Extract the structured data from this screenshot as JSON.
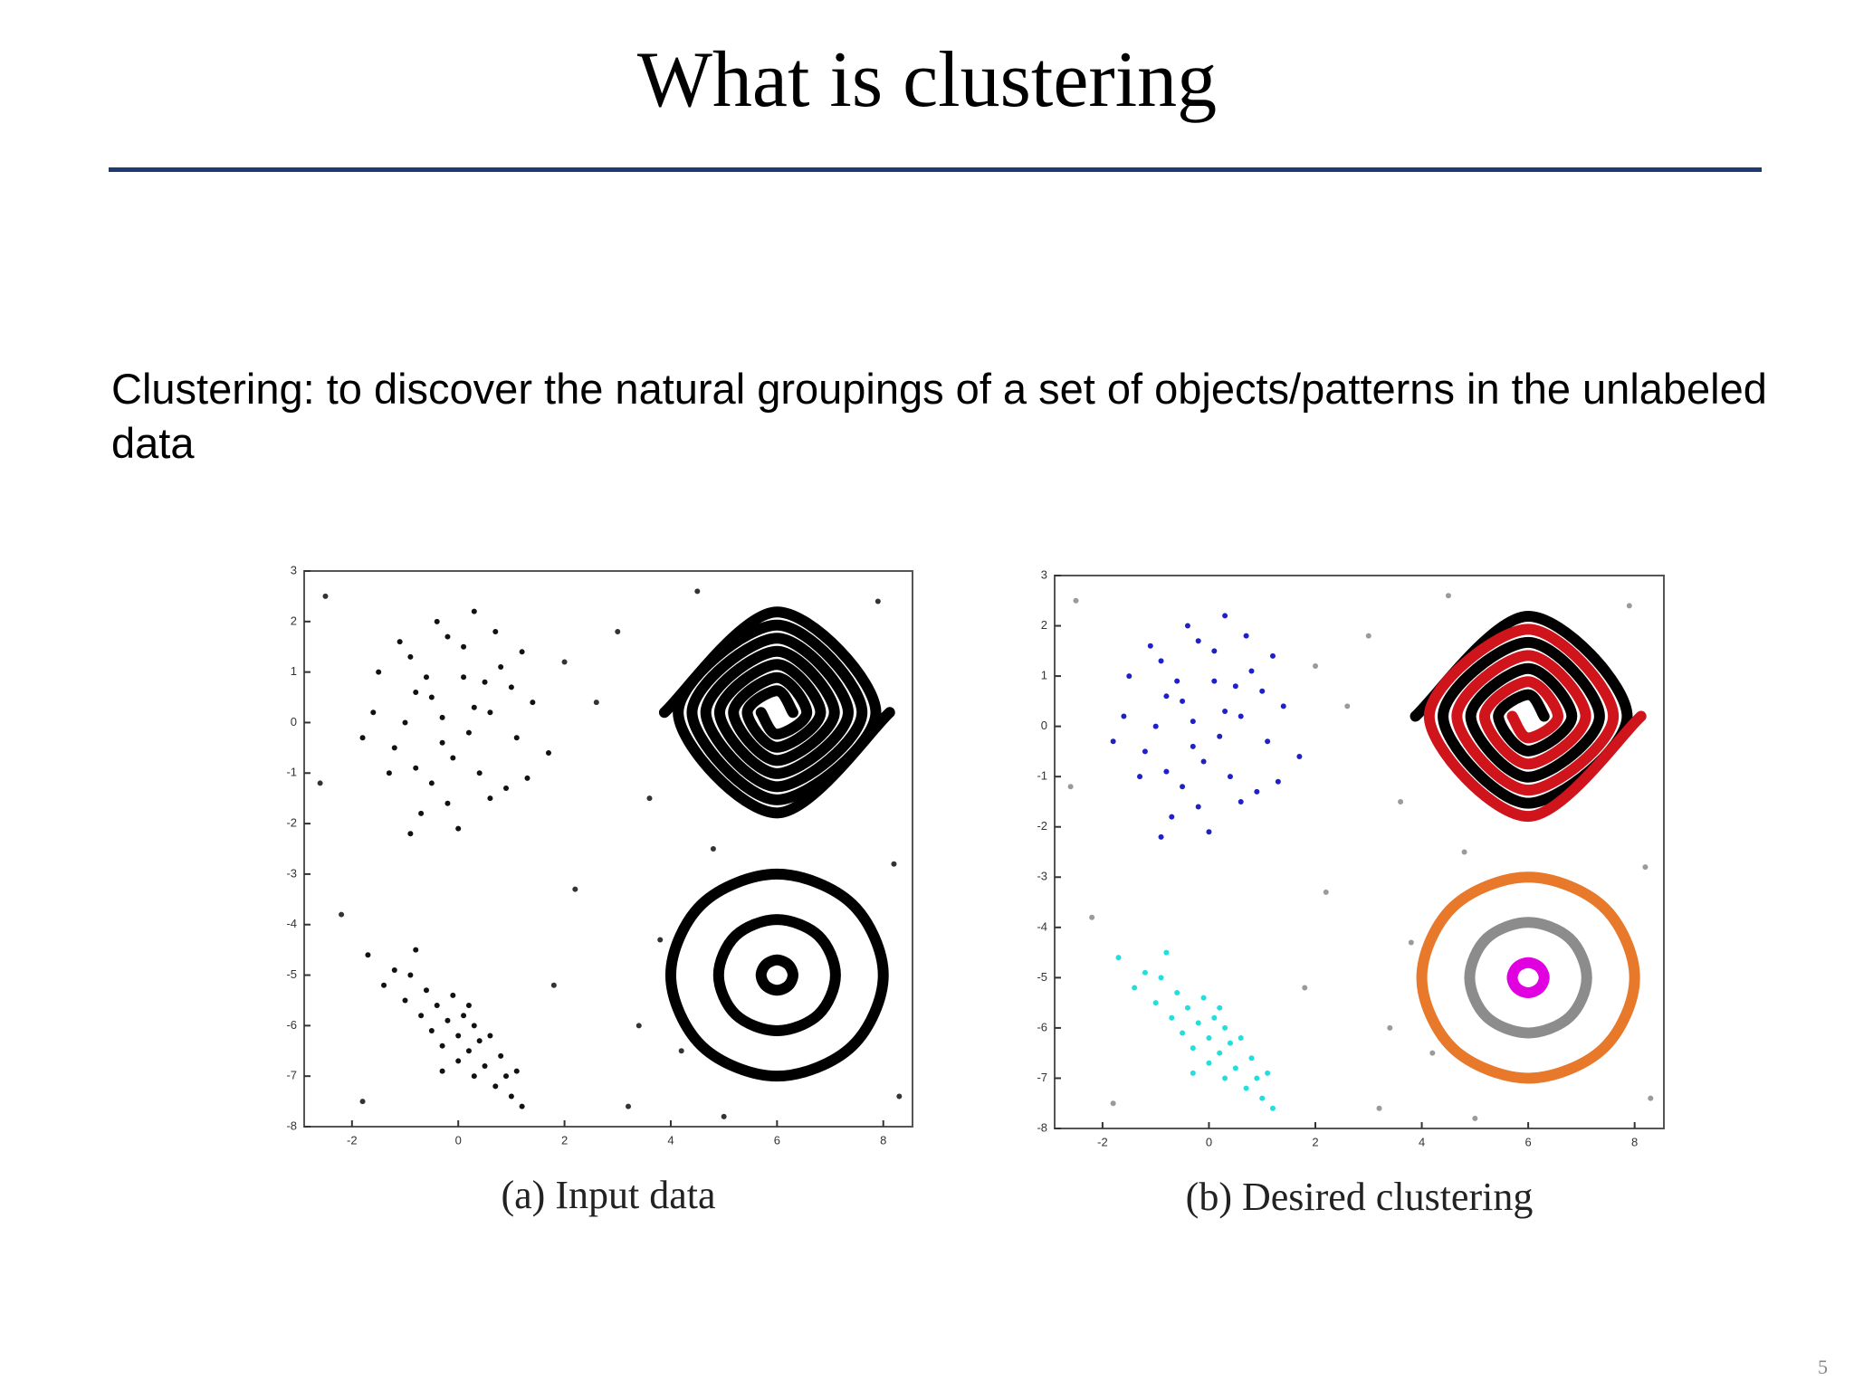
{
  "title": "What is clustering",
  "text": "Clustering: to discover the natural groupings of a set of objects/patterns in the unlabeled data",
  "page_number": "5",
  "chart_data": [
    {
      "type": "scatter",
      "title": "(a) Input data",
      "xlim": [
        -2.9,
        8.55
      ],
      "ylim": [
        -8,
        3
      ],
      "xticks": [
        -2,
        0,
        2,
        4,
        6,
        8
      ],
      "yticks": [
        3,
        2,
        1,
        0,
        -1,
        -2,
        -3,
        -4,
        -5,
        -6,
        -7,
        -8
      ],
      "series": [
        {
          "mode": "markers",
          "color": "#111111",
          "x": [
            -0.3,
            0.5,
            -1.2,
            0.1,
            -0.8,
            1.1,
            -0.5,
            0.3,
            -1.6,
            0.8,
            -0.1,
            -0.9,
            1.4,
            -0.4,
            0.6,
            -1.3,
            0.2,
            -0.7,
            1.0,
            -0.2,
            0.4,
            -1.0,
            1.7,
            -0.6,
            0.0,
            -1.5,
            0.9,
            -0.3,
            0.7,
            -1.1,
            0.3,
            -0.8,
            1.3,
            -0.5,
            0.1,
            -1.8,
            0.6,
            -0.2,
            1.2,
            -0.9
          ],
          "y": [
            0.1,
            0.8,
            -0.5,
            1.5,
            0.6,
            -0.3,
            -1.2,
            0.3,
            0.2,
            1.1,
            -0.7,
            1.3,
            0.4,
            2.0,
            -1.5,
            -1.0,
            -0.2,
            -1.8,
            0.7,
            1.7,
            -1.0,
            0.0,
            -0.6,
            0.9,
            -2.1,
            1.0,
            -1.3,
            -0.4,
            1.8,
            1.6,
            2.2,
            -0.9,
            -1.1,
            0.5,
            0.9,
            -0.3,
            0.2,
            -1.6,
            1.4,
            -2.2
          ]
        },
        {
          "mode": "markers",
          "color": "#111111",
          "x": [
            -1.7,
            -1.4,
            -1.2,
            -1.0,
            -0.9,
            -0.7,
            -0.6,
            -0.5,
            -0.4,
            -0.3,
            -0.2,
            -0.1,
            0.0,
            0.0,
            0.1,
            0.2,
            0.3,
            0.3,
            0.4,
            0.5,
            0.6,
            0.7,
            0.8,
            0.9,
            1.0,
            1.1,
            1.2,
            -0.8,
            0.2,
            -0.3
          ],
          "y": [
            -4.6,
            -5.2,
            -4.9,
            -5.5,
            -5.0,
            -5.8,
            -5.3,
            -6.1,
            -5.6,
            -6.4,
            -5.9,
            -5.4,
            -6.2,
            -6.7,
            -5.8,
            -6.5,
            -6.0,
            -7.0,
            -6.3,
            -6.8,
            -6.2,
            -7.2,
            -6.6,
            -7.0,
            -7.4,
            -6.9,
            -7.6,
            -4.5,
            -5.6,
            -6.9
          ]
        },
        {
          "mode": "markers",
          "color": "#333333",
          "x": [
            -2.5,
            3.0,
            2.2,
            4.5,
            -2.2,
            3.6,
            8.2,
            1.8,
            4.2,
            3.2,
            -1.8,
            2.6,
            7.9,
            4.8,
            3.8,
            2.0,
            8.3,
            -2.6,
            5.0,
            3.4
          ],
          "y": [
            2.5,
            1.8,
            -3.3,
            2.6,
            -3.8,
            -1.5,
            -2.8,
            -5.2,
            -6.5,
            -7.6,
            -7.5,
            0.4,
            2.4,
            -2.5,
            -4.3,
            1.2,
            -7.4,
            -1.2,
            -7.8,
            -6.0
          ]
        },
        {
          "mode": "line",
          "closed": false,
          "color": "#000000",
          "x": [
            6.3,
            6,
            5.44,
            6,
            6.82,
            6,
            4.92,
            6,
            7.34,
            6,
            4.4,
            6,
            7.86,
            6,
            3.88
          ],
          "y": [
            0.2,
            0.63,
            0.2,
            -0.49,
            0.2,
            1.15,
            0.2,
            -1.01,
            0.2,
            1.67,
            0.2,
            -1.53,
            0.2,
            2.19,
            0.2
          ]
        },
        {
          "mode": "line",
          "closed": false,
          "color": "#000000",
          "x": [
            5.7,
            6,
            6.56,
            6,
            5.18,
            6,
            7.08,
            6,
            4.66,
            6,
            7.6,
            6,
            4.14,
            6,
            8.12
          ],
          "y": [
            0.2,
            -0.23,
            0.2,
            0.89,
            0.2,
            -0.75,
            0.2,
            1.41,
            0.2,
            -1.27,
            0.2,
            1.93,
            0.2,
            -1.79,
            0.2
          ]
        },
        {
          "mode": "line",
          "closed": true,
          "color": "#000000",
          "x": [
            8,
            7.41,
            6,
            4.59,
            4,
            4.59,
            6,
            7.41
          ],
          "y": [
            -5,
            -3.59,
            -3,
            -3.59,
            -5,
            -6.41,
            -7,
            -6.41
          ]
        },
        {
          "mode": "line",
          "closed": true,
          "color": "#000000",
          "x": [
            7.1,
            6.78,
            6,
            5.22,
            4.9,
            5.22,
            6,
            6.78
          ],
          "y": [
            -5,
            -4.22,
            -3.9,
            -4.22,
            -5,
            -5.78,
            -6.1,
            -5.78
          ]
        },
        {
          "mode": "line",
          "closed": true,
          "color": "#000000",
          "x": [
            6.3,
            6.21,
            6,
            5.79,
            5.7,
            5.79,
            6,
            6.21
          ],
          "y": [
            -5,
            -4.79,
            -4.7,
            -4.79,
            -5,
            -5.21,
            -5.3,
            -5.21
          ]
        }
      ]
    },
    {
      "type": "scatter",
      "title": "(b) Desired clustering",
      "xlim": [
        -2.9,
        8.55
      ],
      "ylim": [
        -8,
        3
      ],
      "xticks": [
        -2,
        0,
        2,
        4,
        6,
        8
      ],
      "yticks": [
        3,
        2,
        1,
        0,
        -1,
        -2,
        -3,
        -4,
        -5,
        -6,
        -7,
        -8
      ],
      "series": [
        {
          "mode": "markers",
          "color": "#2020c8",
          "x": [
            -0.3,
            0.5,
            -1.2,
            0.1,
            -0.8,
            1.1,
            -0.5,
            0.3,
            -1.6,
            0.8,
            -0.1,
            -0.9,
            1.4,
            -0.4,
            0.6,
            -1.3,
            0.2,
            -0.7,
            1.0,
            -0.2,
            0.4,
            -1.0,
            1.7,
            -0.6,
            0.0,
            -1.5,
            0.9,
            -0.3,
            0.7,
            -1.1,
            0.3,
            -0.8,
            1.3,
            -0.5,
            0.1,
            -1.8,
            0.6,
            -0.2,
            1.2,
            -0.9
          ],
          "y": [
            0.1,
            0.8,
            -0.5,
            1.5,
            0.6,
            -0.3,
            -1.2,
            0.3,
            0.2,
            1.1,
            -0.7,
            1.3,
            0.4,
            2.0,
            -1.5,
            -1.0,
            -0.2,
            -1.8,
            0.7,
            1.7,
            -1.0,
            0.0,
            -0.6,
            0.9,
            -2.1,
            1.0,
            -1.3,
            -0.4,
            1.8,
            1.6,
            2.2,
            -0.9,
            -1.1,
            0.5,
            0.9,
            -0.3,
            0.2,
            -1.6,
            1.4,
            -2.2
          ]
        },
        {
          "mode": "markers",
          "color": "#22dede",
          "x": [
            -1.7,
            -1.4,
            -1.2,
            -1.0,
            -0.9,
            -0.7,
            -0.6,
            -0.5,
            -0.4,
            -0.3,
            -0.2,
            -0.1,
            0.0,
            0.0,
            0.1,
            0.2,
            0.3,
            0.3,
            0.4,
            0.5,
            0.6,
            0.7,
            0.8,
            0.9,
            1.0,
            1.1,
            1.2,
            -0.8,
            0.2,
            -0.3
          ],
          "y": [
            -4.6,
            -5.2,
            -4.9,
            -5.5,
            -5.0,
            -5.8,
            -5.3,
            -6.1,
            -5.6,
            -6.4,
            -5.9,
            -5.4,
            -6.2,
            -6.7,
            -5.8,
            -6.5,
            -6.0,
            -7.0,
            -6.3,
            -6.8,
            -6.2,
            -7.2,
            -6.6,
            -7.0,
            -7.4,
            -6.9,
            -7.6,
            -4.5,
            -5.6,
            -6.9
          ]
        },
        {
          "mode": "markers",
          "color": "#9a9a9a",
          "x": [
            -2.5,
            3.0,
            2.2,
            4.5,
            -2.2,
            3.6,
            8.2,
            1.8,
            4.2,
            3.2,
            -1.8,
            2.6,
            7.9,
            4.8,
            3.8,
            2.0,
            8.3,
            -2.6,
            5.0,
            3.4
          ],
          "y": [
            2.5,
            1.8,
            -3.3,
            2.6,
            -3.8,
            -1.5,
            -2.8,
            -5.2,
            -6.5,
            -7.6,
            -7.5,
            0.4,
            2.4,
            -2.5,
            -4.3,
            1.2,
            -7.4,
            -1.2,
            -7.8,
            -6.0
          ]
        },
        {
          "mode": "line",
          "closed": false,
          "color": "#000000",
          "x": [
            6.3,
            6,
            5.44,
            6,
            6.82,
            6,
            4.92,
            6,
            7.34,
            6,
            4.4,
            6,
            7.86,
            6,
            3.88
          ],
          "y": [
            0.2,
            0.63,
            0.2,
            -0.49,
            0.2,
            1.15,
            0.2,
            -1.01,
            0.2,
            1.67,
            0.2,
            -1.53,
            0.2,
            2.19,
            0.2
          ]
        },
        {
          "mode": "line",
          "closed": false,
          "color": "#d0141c",
          "x": [
            5.7,
            6,
            6.56,
            6,
            5.18,
            6,
            7.08,
            6,
            4.66,
            6,
            7.6,
            6,
            4.14,
            6,
            8.12
          ],
          "y": [
            0.2,
            -0.23,
            0.2,
            0.89,
            0.2,
            -0.75,
            0.2,
            1.41,
            0.2,
            -1.27,
            0.2,
            1.93,
            0.2,
            -1.79,
            0.2
          ]
        },
        {
          "mode": "line",
          "closed": true,
          "color": "#e8782a",
          "x": [
            8,
            7.41,
            6,
            4.59,
            4,
            4.59,
            6,
            7.41
          ],
          "y": [
            -5,
            -3.59,
            -3,
            -3.59,
            -5,
            -6.41,
            -7,
            -6.41
          ]
        },
        {
          "mode": "line",
          "closed": true,
          "color": "#8c8c8c",
          "x": [
            7.1,
            6.78,
            6,
            5.22,
            4.9,
            5.22,
            6,
            6.78
          ],
          "y": [
            -5,
            -4.22,
            -3.9,
            -4.22,
            -5,
            -5.78,
            -6.1,
            -5.78
          ]
        },
        {
          "mode": "line",
          "closed": true,
          "color": "#e000e0",
          "x": [
            6.3,
            6.21,
            6,
            5.79,
            5.7,
            5.79,
            6,
            6.21
          ],
          "y": [
            -5,
            -4.79,
            -4.7,
            -4.79,
            -5,
            -5.21,
            -5.3,
            -5.21
          ]
        }
      ]
    }
  ]
}
